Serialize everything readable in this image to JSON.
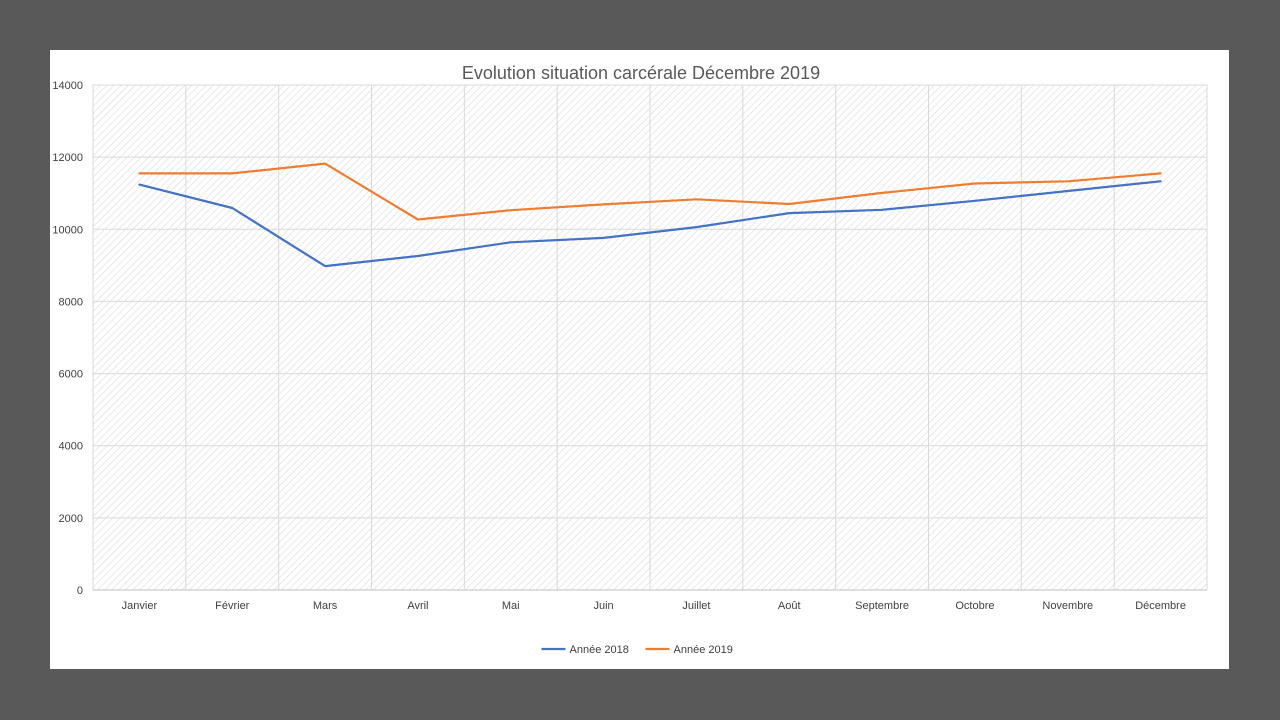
{
  "chart_data": {
    "type": "line",
    "title": "Evolution situation carcérale Décembre  2019",
    "xlabel": "",
    "ylabel": "",
    "categories": [
      "Janvier",
      "Février",
      "Mars",
      "Avril",
      "Mai",
      "Juin",
      "Juillet",
      "Août",
      "Septembre",
      "Octobre",
      "Novembre",
      "Décembre"
    ],
    "series": [
      {
        "name": "Année 2018",
        "color": "#4472c4",
        "values": [
          11240,
          10590,
          8980,
          9260,
          9640,
          9760,
          10060,
          10450,
          10540,
          10790,
          11060,
          11330
        ]
      },
      {
        "name": "Année 2019",
        "color": "#ed7d31",
        "values": [
          11550,
          11550,
          11820,
          10270,
          10530,
          10690,
          10830,
          10700,
          11010,
          11270,
          11330,
          11550
        ]
      }
    ],
    "ylim": [
      0,
      14000
    ],
    "yticks": [
      0,
      2000,
      4000,
      6000,
      8000,
      10000,
      12000,
      14000
    ],
    "grid": true,
    "legend": "bottom"
  }
}
